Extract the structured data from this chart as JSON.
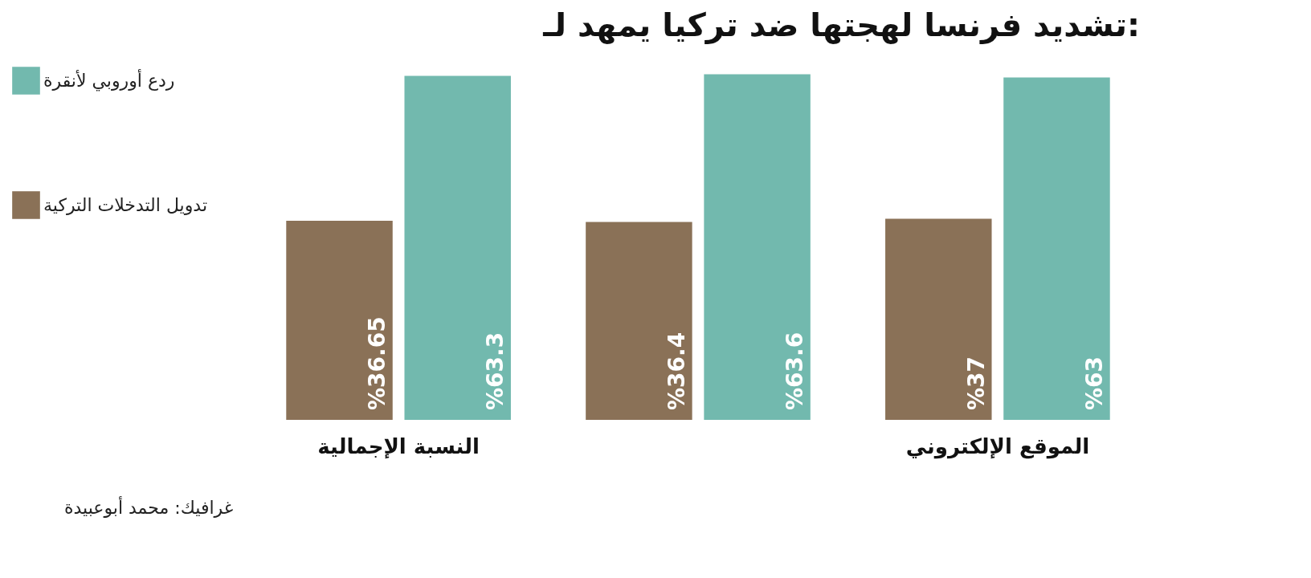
{
  "chart_data": {
    "type": "bar",
    "title": "تشديد فرنسا لهجتها ضد تركيا يمهد لـ:",
    "categories": [
      "النسبة الإجمالية",
      null,
      "الموقع الإلكتروني"
    ],
    "series": [
      {
        "name": "تدويل التدخلات التركية",
        "color": "#8a7157",
        "values": [
          36.65,
          36.4,
          37
        ],
        "value_labels": [
          "%36.65",
          "%36.4",
          "%37"
        ]
      },
      {
        "name": "ردع أوروبي لأنقرة",
        "color": "#72b9ae",
        "values": [
          63.3,
          63.6,
          63
        ],
        "value_labels": [
          "%63.3",
          "%63.6",
          "%63"
        ]
      }
    ],
    "legend": "left",
    "grid": false,
    "annotations": [
      "غرافيك: محمد أبوعبيدة"
    ]
  }
}
